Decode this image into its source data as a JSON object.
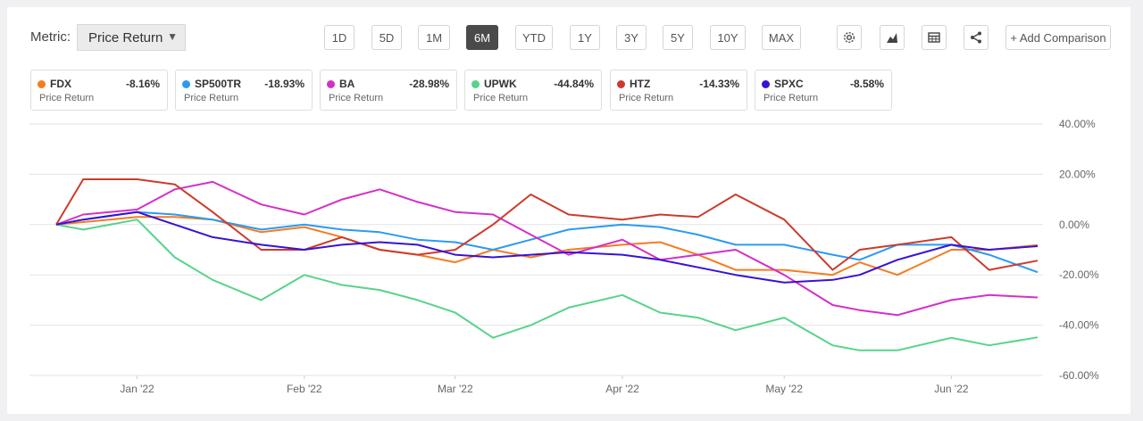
{
  "toolbar": {
    "metric_label": "Metric:",
    "metric_value": "Price Return",
    "ranges": [
      "1D",
      "5D",
      "1M",
      "6M",
      "YTD",
      "1Y",
      "3Y",
      "5Y",
      "10Y",
      "MAX"
    ],
    "active_range": "6M",
    "add_comparison": "+ Add Comparison"
  },
  "cards": [
    {
      "symbol": "FDX",
      "value": "-8.16%",
      "sub": "Price Return",
      "color": "#f57c1f"
    },
    {
      "symbol": "SP500TR",
      "value": "-18.93%",
      "sub": "Price Return",
      "color": "#2b9af3"
    },
    {
      "symbol": "BA",
      "value": "-28.98%",
      "sub": "Price Return",
      "color": "#d52fc8"
    },
    {
      "symbol": "UPWK",
      "value": "-44.84%",
      "sub": "Price Return",
      "color": "#58d38b"
    },
    {
      "symbol": "HTZ",
      "value": "-14.33%",
      "sub": "Price Return",
      "color": "#cc3b2c"
    },
    {
      "symbol": "SPXC",
      "value": "-8.58%",
      "sub": "Price Return",
      "color": "#3812d6"
    }
  ],
  "chart_data": {
    "type": "line",
    "ylim": [
      -60,
      40
    ],
    "yticks": [
      40,
      20,
      0,
      -20,
      -40,
      -60
    ],
    "ytick_labels": [
      "40.00%",
      "20.00%",
      "0.00%",
      "-20.00%",
      "-40.00%",
      "-60.00%"
    ],
    "x_tick_labels": [
      "Jan '22",
      "Feb '22",
      "Mar '22",
      "Apr '22",
      "May '22",
      "Jun '22"
    ],
    "x_tick_dates": [
      "2022-01-01",
      "2022-02-01",
      "2022-03-01",
      "2022-04-01",
      "2022-05-01",
      "2022-06-01"
    ],
    "x_range": [
      "2021-12-17",
      "2022-06-17"
    ],
    "grid": true,
    "series": [
      {
        "name": "FDX",
        "color": "#f57c1f",
        "x": [
          "2021-12-17",
          "2021-12-22",
          "2022-01-01",
          "2022-01-08",
          "2022-01-15",
          "2022-01-24",
          "2022-02-01",
          "2022-02-08",
          "2022-02-15",
          "2022-02-22",
          "2022-03-01",
          "2022-03-08",
          "2022-03-15",
          "2022-03-22",
          "2022-04-01",
          "2022-04-08",
          "2022-04-15",
          "2022-04-22",
          "2022-05-01",
          "2022-05-10",
          "2022-05-15",
          "2022-05-22",
          "2022-06-01",
          "2022-06-08",
          "2022-06-17"
        ],
        "values": [
          0,
          1,
          3,
          3,
          2,
          -3,
          -1,
          -5,
          -10,
          -12,
          -15,
          -10,
          -13,
          -10,
          -8,
          -7,
          -12,
          -18,
          -18,
          -20,
          -15,
          -20,
          -10,
          -10,
          -8.16
        ]
      },
      {
        "name": "SP500TR",
        "color": "#2b9af3",
        "x": [
          "2021-12-17",
          "2021-12-22",
          "2022-01-01",
          "2022-01-08",
          "2022-01-15",
          "2022-01-24",
          "2022-02-01",
          "2022-02-08",
          "2022-02-15",
          "2022-02-22",
          "2022-03-01",
          "2022-03-08",
          "2022-03-15",
          "2022-03-22",
          "2022-04-01",
          "2022-04-08",
          "2022-04-15",
          "2022-04-22",
          "2022-05-01",
          "2022-05-10",
          "2022-05-15",
          "2022-05-22",
          "2022-06-01",
          "2022-06-08",
          "2022-06-17"
        ],
        "values": [
          0,
          2,
          5,
          4,
          2,
          -2,
          0,
          -2,
          -3,
          -6,
          -7,
          -10,
          -6,
          -2,
          0,
          -1,
          -4,
          -8,
          -8,
          -12,
          -14,
          -8,
          -8,
          -12,
          -18.93
        ]
      },
      {
        "name": "BA",
        "color": "#d52fc8",
        "x": [
          "2021-12-17",
          "2021-12-22",
          "2022-01-01",
          "2022-01-08",
          "2022-01-15",
          "2022-01-24",
          "2022-02-01",
          "2022-02-08",
          "2022-02-15",
          "2022-02-22",
          "2022-03-01",
          "2022-03-08",
          "2022-03-15",
          "2022-03-22",
          "2022-04-01",
          "2022-04-08",
          "2022-04-15",
          "2022-04-22",
          "2022-05-01",
          "2022-05-10",
          "2022-05-15",
          "2022-05-22",
          "2022-06-01",
          "2022-06-08",
          "2022-06-17"
        ],
        "values": [
          0,
          4,
          6,
          14,
          17,
          8,
          4,
          10,
          14,
          9,
          5,
          4,
          -4,
          -12,
          -6,
          -14,
          -12,
          -10,
          -20,
          -32,
          -34,
          -36,
          -30,
          -28,
          -28.98
        ]
      },
      {
        "name": "UPWK",
        "color": "#58d38b",
        "x": [
          "2021-12-17",
          "2021-12-22",
          "2022-01-01",
          "2022-01-08",
          "2022-01-15",
          "2022-01-24",
          "2022-02-01",
          "2022-02-08",
          "2022-02-15",
          "2022-02-22",
          "2022-03-01",
          "2022-03-08",
          "2022-03-15",
          "2022-03-22",
          "2022-04-01",
          "2022-04-08",
          "2022-04-15",
          "2022-04-22",
          "2022-05-01",
          "2022-05-10",
          "2022-05-15",
          "2022-05-22",
          "2022-06-01",
          "2022-06-08",
          "2022-06-17"
        ],
        "values": [
          0,
          -2,
          2,
          -13,
          -22,
          -30,
          -20,
          -24,
          -26,
          -30,
          -35,
          -45,
          -40,
          -33,
          -28,
          -35,
          -37,
          -42,
          -37,
          -48,
          -50,
          -50,
          -45,
          -48,
          -44.84
        ]
      },
      {
        "name": "HTZ",
        "color": "#cc3b2c",
        "x": [
          "2021-12-17",
          "2021-12-22",
          "2022-01-01",
          "2022-01-08",
          "2022-01-15",
          "2022-01-24",
          "2022-02-01",
          "2022-02-08",
          "2022-02-15",
          "2022-02-22",
          "2022-03-01",
          "2022-03-08",
          "2022-03-15",
          "2022-03-22",
          "2022-04-01",
          "2022-04-08",
          "2022-04-15",
          "2022-04-22",
          "2022-05-01",
          "2022-05-10",
          "2022-05-15",
          "2022-05-22",
          "2022-06-01",
          "2022-06-08",
          "2022-06-17"
        ],
        "values": [
          0,
          18,
          18,
          16,
          5,
          -10,
          -10,
          -5,
          -10,
          -12,
          -10,
          0,
          12,
          4,
          2,
          4,
          3,
          12,
          2,
          -18,
          -10,
          -8,
          -5,
          -18,
          -14.33
        ]
      },
      {
        "name": "SPXC",
        "color": "#3812d6",
        "x": [
          "2021-12-17",
          "2021-12-22",
          "2022-01-01",
          "2022-01-08",
          "2022-01-15",
          "2022-01-24",
          "2022-02-01",
          "2022-02-08",
          "2022-02-15",
          "2022-02-22",
          "2022-03-01",
          "2022-03-08",
          "2022-03-15",
          "2022-03-22",
          "2022-04-01",
          "2022-04-08",
          "2022-04-15",
          "2022-04-22",
          "2022-05-01",
          "2022-05-10",
          "2022-05-15",
          "2022-05-22",
          "2022-06-01",
          "2022-06-08",
          "2022-06-17"
        ],
        "values": [
          0,
          2,
          5,
          0,
          -5,
          -8,
          -10,
          -8,
          -7,
          -8,
          -12,
          -13,
          -12,
          -11,
          -12,
          -14,
          -17,
          -20,
          -23,
          -22,
          -20,
          -14,
          -8,
          -10,
          -8.58
        ]
      }
    ]
  }
}
